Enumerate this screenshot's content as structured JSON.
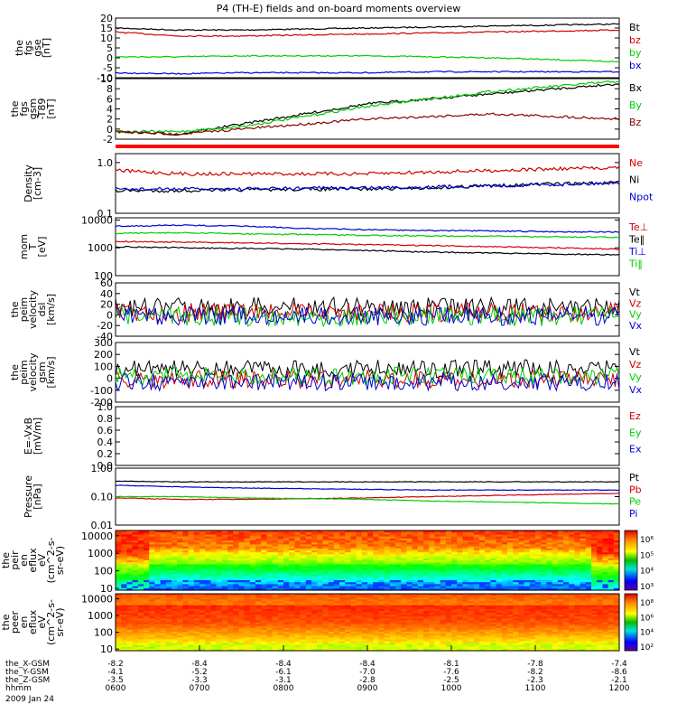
{
  "title": "P4 (TH-E) fields and on-board moments overview",
  "chart_data": [
    {
      "type": "line",
      "id": "fgs_gse",
      "ylabel_lines": [
        "the",
        "fgs",
        "gse",
        "[nT]"
      ],
      "ylim": [
        -10,
        20
      ],
      "ticks": [
        "20",
        "15",
        "10",
        "5",
        "0",
        "-5",
        "-10"
      ],
      "series": [
        {
          "name": "Bt",
          "color": "#000000",
          "values": [
            15,
            14,
            14,
            14.5,
            15,
            15.5,
            16,
            16.5,
            17
          ]
        },
        {
          "name": "bz",
          "color": "#d00000",
          "values": [
            13,
            11,
            11,
            11.5,
            12,
            12.5,
            13,
            13.5,
            14
          ]
        },
        {
          "name": "by",
          "color": "#00cc00",
          "values": [
            0.5,
            0.5,
            1,
            1,
            1,
            0.5,
            0,
            -1,
            -2
          ]
        },
        {
          "name": "bx",
          "color": "#0000d0",
          "values": [
            -7.5,
            -8,
            -7.5,
            -7.5,
            -7.5,
            -7,
            -7,
            -7,
            -7
          ]
        }
      ]
    },
    {
      "type": "line",
      "id": "fgs_gsm_dbz",
      "ylabel_lines": [
        "the",
        "fgs",
        "gsm",
        "-T89",
        "[nT]"
      ],
      "ylim": [
        -2,
        10
      ],
      "ticks": [
        "10",
        "8",
        "6",
        "4",
        "2",
        "0",
        "-2"
      ],
      "series": [
        {
          "name": "Bx",
          "color": "#000000",
          "values": [
            -0.5,
            -1,
            1,
            3,
            5,
            6,
            7,
            8,
            9
          ]
        },
        {
          "name": "By",
          "color": "#00cc00",
          "values": [
            -0.5,
            -0.5,
            0.5,
            2.5,
            4.5,
            6,
            7.5,
            8.5,
            9.5
          ]
        },
        {
          "name": "Bz",
          "color": "#8b0000",
          "values": [
            -0.5,
            -1,
            0,
            1,
            2,
            2.5,
            3,
            2.5,
            2
          ]
        }
      ]
    },
    {
      "type": "line",
      "id": "density",
      "ylabel_lines": [
        "Density",
        "[cm-3]"
      ],
      "log": true,
      "ylim": [
        0.1,
        1.5
      ],
      "ticks": [
        "1.0",
        "0.1"
      ],
      "series": [
        {
          "name": "Ne",
          "color": "#d00000",
          "values": [
            0.7,
            0.6,
            0.6,
            0.6,
            0.6,
            0.65,
            0.7,
            0.75,
            0.8
          ]
        },
        {
          "name": "Ni",
          "color": "#000000",
          "values": [
            0.28,
            0.28,
            0.29,
            0.3,
            0.3,
            0.32,
            0.35,
            0.38,
            0.4
          ]
        },
        {
          "name": "Npot",
          "color": "#0000d0",
          "values": [
            0.3,
            0.3,
            0.3,
            0.31,
            0.32,
            0.33,
            0.35,
            0.37,
            0.4
          ]
        }
      ]
    },
    {
      "type": "line",
      "id": "temperature",
      "ylabel_lines": [
        "mom",
        "T",
        "[eV]"
      ],
      "log": true,
      "ylim": [
        100,
        12000
      ],
      "ticks": [
        "10000",
        "1000",
        "100"
      ],
      "series": [
        {
          "name": "Te⊥",
          "color": "#d00000",
          "values": [
            1700,
            1600,
            1500,
            1400,
            1300,
            1200,
            1100,
            1000,
            900
          ]
        },
        {
          "name": "Te‖",
          "color": "#000000",
          "values": [
            1100,
            1000,
            950,
            900,
            800,
            700,
            650,
            600,
            550
          ]
        },
        {
          "name": "Ti⊥",
          "color": "#0000d0",
          "values": [
            6000,
            6500,
            6000,
            5000,
            4500,
            4200,
            4000,
            3800,
            3700
          ]
        },
        {
          "name": "Ti‖",
          "color": "#00cc00",
          "values": [
            3300,
            3500,
            3200,
            3000,
            2800,
            2700,
            2600,
            2500,
            2400
          ]
        }
      ]
    },
    {
      "type": "line",
      "id": "peim_velocity_dsl",
      "ylabel_lines": [
        "the",
        "peim",
        "velocity",
        "dsl",
        "[km/s]"
      ],
      "ylim": [
        -40,
        60
      ],
      "ticks": [
        "60",
        "40",
        "20",
        "0",
        "-20",
        "-40"
      ],
      "series": [
        {
          "name": "Vt",
          "color": "#000000",
          "values": [
            15,
            15,
            15,
            15,
            15,
            15,
            15,
            15,
            15
          ]
        },
        {
          "name": "Vz",
          "color": "#d00000",
          "values": [
            5,
            5,
            5,
            5,
            5,
            5,
            5,
            5,
            5
          ]
        },
        {
          "name": "Vy",
          "color": "#00cc00",
          "values": [
            -3,
            -3,
            -3,
            -3,
            -3,
            -3,
            -3,
            -3,
            -3
          ]
        },
        {
          "name": "Vx",
          "color": "#0000d0",
          "values": [
            -2,
            -2,
            -2,
            -2,
            -2,
            -2,
            -2,
            -2,
            -2
          ]
        }
      ]
    },
    {
      "type": "line",
      "id": "peim_velocity_gsm",
      "ylabel_lines": [
        "the",
        "peim",
        "velocity",
        "gsm",
        "[km/s]"
      ],
      "ylim": [
        -200,
        300
      ],
      "ticks": [
        "300",
        "200",
        "100",
        "0",
        "-100",
        "-200"
      ],
      "series": [
        {
          "name": "Vt",
          "color": "#000000",
          "values": [
            80,
            80,
            80,
            80,
            80,
            80,
            80,
            80,
            80
          ]
        },
        {
          "name": "Vz",
          "color": "#d00000",
          "values": [
            -10,
            -10,
            -10,
            -10,
            -10,
            -10,
            -10,
            -10,
            -10
          ]
        },
        {
          "name": "Vy",
          "color": "#00cc00",
          "values": [
            20,
            20,
            20,
            20,
            20,
            20,
            20,
            20,
            20
          ]
        },
        {
          "name": "Vx",
          "color": "#0000d0",
          "values": [
            -30,
            -30,
            -30,
            -30,
            -30,
            -30,
            -30,
            -30,
            -30
          ]
        }
      ]
    },
    {
      "type": "line",
      "id": "efield",
      "ylabel_lines": [
        "E=-VxB",
        "[mV/m]"
      ],
      "ylim": [
        0,
        1
      ],
      "ticks": [
        "1.0",
        "0.8",
        "0.6",
        "0.4",
        "0.2",
        "0.0"
      ],
      "series": [
        {
          "name": "Ez",
          "color": "#d00000",
          "values": []
        },
        {
          "name": "Ey",
          "color": "#00cc00",
          "values": []
        },
        {
          "name": "Ex",
          "color": "#0000d0",
          "values": []
        }
      ]
    },
    {
      "type": "line",
      "id": "pressure",
      "ylabel_lines": [
        "Pressure",
        "[nPa]"
      ],
      "log": true,
      "ylim": [
        0.01,
        1
      ],
      "ticks": [
        "1.00",
        "0.10",
        "0.01"
      ],
      "series": [
        {
          "name": "Pt",
          "color": "#000000",
          "values": [
            0.35,
            0.33,
            0.33,
            0.33,
            0.33,
            0.33,
            0.33,
            0.33,
            0.33
          ]
        },
        {
          "name": "Pb",
          "color": "#d00000",
          "values": [
            0.09,
            0.08,
            0.08,
            0.085,
            0.09,
            0.1,
            0.11,
            0.12,
            0.13
          ]
        },
        {
          "name": "Pe",
          "color": "#00cc00",
          "values": [
            0.1,
            0.1,
            0.09,
            0.085,
            0.08,
            0.07,
            0.065,
            0.06,
            0.055
          ]
        },
        {
          "name": "Pi",
          "color": "#0000d0",
          "values": [
            0.25,
            0.22,
            0.2,
            0.19,
            0.18,
            0.17,
            0.17,
            0.17,
            0.17
          ]
        }
      ]
    },
    {
      "type": "heatmap",
      "id": "peir_eflux",
      "ylabel_lines": [
        "the",
        "peir",
        "en",
        "eflux",
        "eV",
        "(cm^2-s-",
        "sr-eV)"
      ],
      "ticks": [
        "10000",
        "1000",
        "100",
        "10"
      ],
      "colorbar_ticks": [
        "10⁶",
        "10⁵",
        "10⁴",
        "10³"
      ]
    },
    {
      "type": "heatmap",
      "id": "peer_eflux",
      "ylabel_lines": [
        "the",
        "peer",
        "en",
        "eflux",
        "eV",
        "(cm^2-s-",
        "sr-eV)"
      ],
      "ticks": [
        "10000",
        "1000",
        "100",
        "10"
      ],
      "colorbar_ticks": [
        "10⁸",
        "10⁶",
        "10⁴",
        "10²"
      ]
    }
  ],
  "xaxis": {
    "rows": [
      {
        "name": "the_X-GSM",
        "values": [
          "-8.2",
          "-8.4",
          "-8.4",
          "-8.4",
          "-8.1",
          "-7.8",
          "-7.4"
        ]
      },
      {
        "name": "the_Y-GSM",
        "values": [
          "-4.1",
          "-5.2",
          "-6.1",
          "-7.0",
          "-7.6",
          "-8.2",
          "-8.6"
        ]
      },
      {
        "name": "the_Z-GSM",
        "values": [
          "-3.5",
          "-3.3",
          "-3.1",
          "-2.8",
          "-2.5",
          "-2.3",
          "-2.1"
        ]
      },
      {
        "name": "hhmm",
        "values": [
          "0600",
          "0700",
          "0800",
          "0900",
          "1000",
          "1100",
          "1200"
        ]
      }
    ],
    "date": "2009 Jan 24"
  }
}
